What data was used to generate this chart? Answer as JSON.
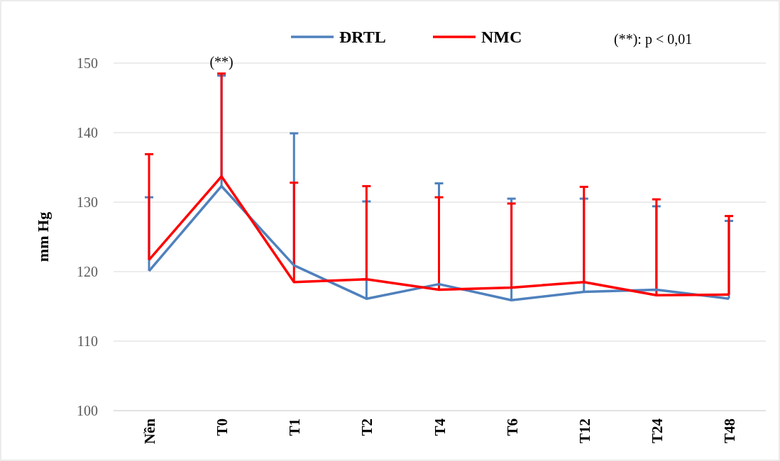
{
  "chart_data": {
    "type": "line",
    "ylabel": "mm Hg",
    "categories": [
      "Nền",
      "T0",
      "T1",
      "T2",
      "T4",
      "T6",
      "T12",
      "T24",
      "T48"
    ],
    "series": [
      {
        "name": "ĐRTL",
        "color": "#4f81bd",
        "values": [
          120.1,
          132.3,
          120.9,
          116.1,
          118.2,
          115.9,
          117.1,
          117.4,
          116.1
        ],
        "errors": [
          [
            120.1,
            130.7
          ],
          [
            132.3,
            148.2
          ],
          [
            120.9,
            139.9
          ],
          [
            116.1,
            130.1
          ],
          [
            118.2,
            132.7
          ],
          [
            115.9,
            130.5
          ],
          [
            117.1,
            130.5
          ],
          [
            117.4,
            129.4
          ],
          [
            116.1,
            127.3
          ]
        ]
      },
      {
        "name": "NMC",
        "color": "#ff0000",
        "values": [
          121.7,
          133.7,
          118.5,
          118.9,
          117.4,
          117.7,
          118.5,
          116.6,
          116.7
        ],
        "errors": [
          [
            121.7,
            136.9
          ],
          [
            133.7,
            148.5
          ],
          [
            118.5,
            132.8
          ],
          [
            118.9,
            132.3
          ],
          [
            117.4,
            130.7
          ],
          [
            117.7,
            129.8
          ],
          [
            118.5,
            132.2
          ],
          [
            116.6,
            130.4
          ],
          [
            116.7,
            128.0
          ]
        ]
      }
    ],
    "ylim": [
      100,
      150
    ],
    "yticks": [
      100,
      110,
      120,
      130,
      140,
      150
    ],
    "grid": "y",
    "legend": "top",
    "line_style": "solid",
    "annotations": [
      "(**)",
      "(**): p < 0,01"
    ]
  }
}
